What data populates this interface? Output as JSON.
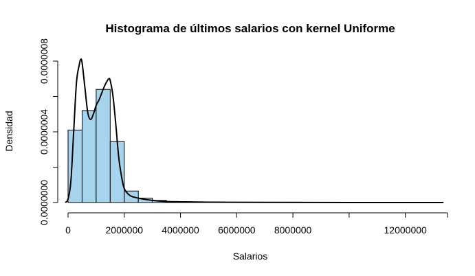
{
  "chart_data": {
    "type": "bar",
    "title": "Histograma de últimos salarios con kernel Uniforme",
    "xlabel": "Salarios",
    "ylabel": "Densidad",
    "xlim": [
      0,
      13500000
    ],
    "ylim": [
      0,
      8e-07
    ],
    "x_ticks": [
      0,
      2000000,
      4000000,
      6000000,
      8000000,
      10000000,
      12000000
    ],
    "x_tick_labels": [
      "0",
      "2000000",
      "4000000",
      "6000000",
      "8000000",
      "",
      "12000000"
    ],
    "y_ticks": [
      0,
      2e-07,
      4e-07,
      6e-07,
      8e-07
    ],
    "y_tick_labels": [
      "0.0000000",
      "",
      "0.0000004",
      "",
      "0.0000008"
    ],
    "bar_color": "#a6d4ec",
    "bins": [
      {
        "x0": 0,
        "x1": 500000,
        "value": 4.1e-07
      },
      {
        "x0": 500000,
        "x1": 1000000,
        "value": 5.2e-07
      },
      {
        "x0": 1000000,
        "x1": 1500000,
        "value": 6.4e-07
      },
      {
        "x0": 1500000,
        "x1": 2000000,
        "value": 3.45e-07
      },
      {
        "x0": 2000000,
        "x1": 2500000,
        "value": 6.5e-08
      },
      {
        "x0": 2500000,
        "x1": 3000000,
        "value": 2.5e-08
      },
      {
        "x0": 3000000,
        "x1": 3500000,
        "value": 1.2e-08
      },
      {
        "x0": 3500000,
        "x1": 4000000,
        "value": 6e-09
      },
      {
        "x0": 4000000,
        "x1": 4500000,
        "value": 3e-09
      },
      {
        "x0": 4500000,
        "x1": 5000000,
        "value": 2e-09
      }
    ],
    "density": {
      "x": [
        -100000,
        0,
        100000,
        200000,
        300000,
        400000,
        450000,
        500000,
        600000,
        700000,
        800000,
        900000,
        1000000,
        1100000,
        1200000,
        1300000,
        1400000,
        1450000,
        1500000,
        1600000,
        1700000,
        1800000,
        1900000,
        2000000,
        2200000,
        2500000,
        3000000,
        3500000,
        4000000,
        5000000,
        7000000,
        10000000,
        13000000,
        13300000
      ],
      "y": [
        0,
        2e-08,
        1.2e-07,
        4e-07,
        6.8e-07,
        7.8e-07,
        8.1e-07,
        7.9e-07,
        6.5e-07,
        5.1e-07,
        4.7e-07,
        5e-07,
        5.5e-07,
        5.8e-07,
        6.2e-07,
        6.6e-07,
        6.9e-07,
        7e-07,
        6.9e-07,
        6e-07,
        4.4e-07,
        2.6e-07,
        1.5e-07,
        8e-08,
        4e-08,
        2.5e-08,
        1.2e-08,
        6e-09,
        4e-09,
        2e-09,
        1e-09,
        0,
        0,
        0
      ]
    }
  }
}
